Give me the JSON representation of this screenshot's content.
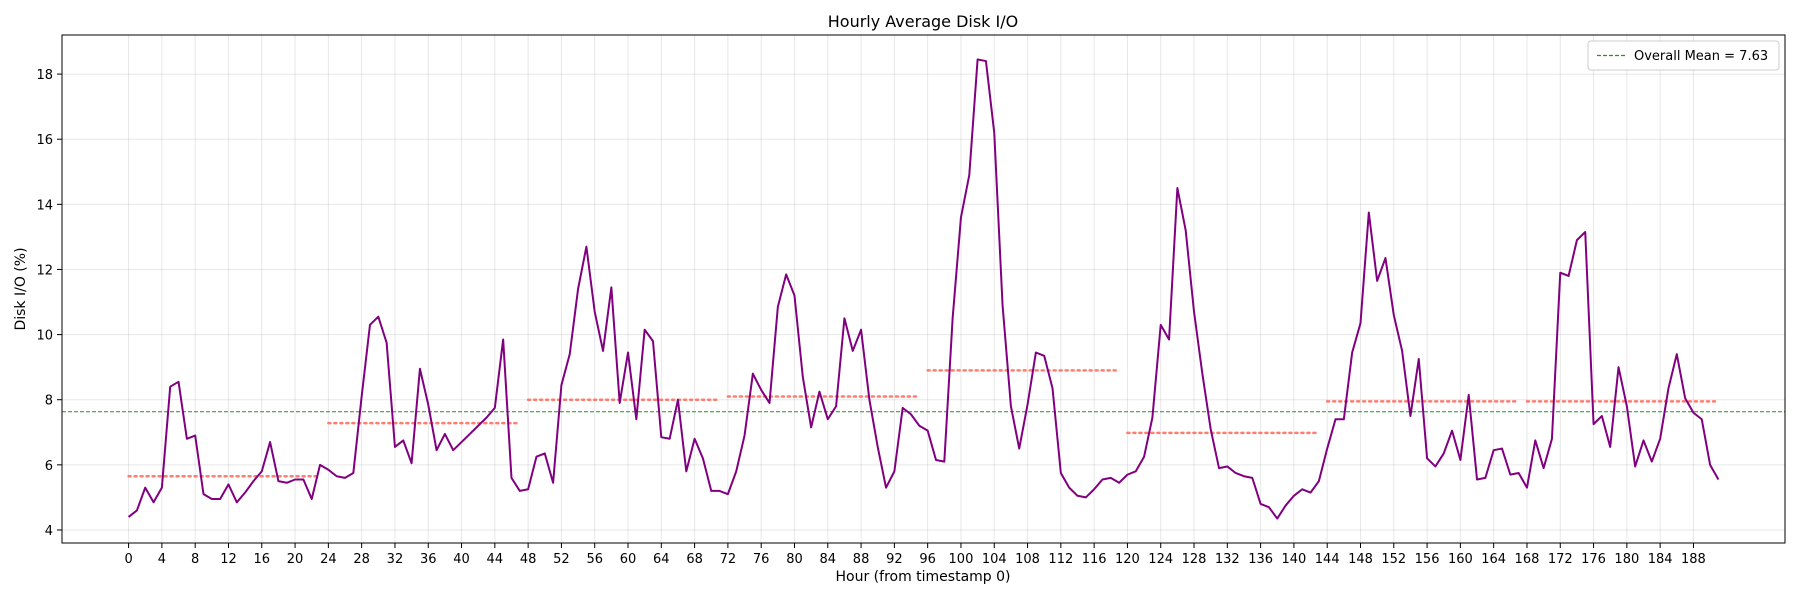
{
  "chart_data": {
    "type": "line",
    "title": "Hourly Average Disk I/O",
    "xlabel": "Hour (from timestamp 0)",
    "ylabel": "Disk I/O (%)",
    "xlim": [
      -8,
      199
    ],
    "ylim": [
      3.6,
      19.2
    ],
    "grid": true,
    "legend_position": "top-right",
    "x_ticks": [
      0,
      4,
      8,
      12,
      16,
      20,
      24,
      28,
      32,
      36,
      40,
      44,
      48,
      52,
      56,
      60,
      64,
      68,
      72,
      76,
      80,
      84,
      88,
      92,
      96,
      100,
      104,
      108,
      112,
      116,
      120,
      124,
      128,
      132,
      136,
      140,
      144,
      148,
      152,
      156,
      160,
      164,
      168,
      172,
      176,
      180,
      184,
      188
    ],
    "y_ticks": [
      4,
      6,
      8,
      10,
      12,
      14,
      16,
      18
    ],
    "series": [
      {
        "color": "#800080",
        "style": "solid",
        "x_start": 0,
        "x_step": 1,
        "values": [
          4.4,
          4.6,
          5.3,
          4.85,
          5.3,
          8.4,
          8.55,
          6.8,
          6.9,
          5.1,
          4.95,
          4.95,
          5.4,
          4.85,
          5.15,
          5.5,
          5.8,
          6.7,
          5.5,
          5.45,
          5.55,
          5.55,
          4.95,
          6.0,
          5.85,
          5.65,
          5.6,
          5.75,
          8.1,
          10.3,
          10.55,
          9.75,
          6.55,
          6.75,
          6.05,
          8.95,
          7.85,
          6.45,
          6.95,
          6.45,
          6.7,
          6.95,
          7.2,
          7.45,
          7.75,
          9.85,
          5.6,
          5.2,
          5.25,
          6.25,
          6.35,
          5.45,
          8.45,
          9.4,
          11.4,
          12.7,
          10.7,
          9.5,
          11.45,
          7.9,
          9.45,
          7.4,
          10.15,
          9.8,
          6.85,
          6.8,
          8.0,
          5.8,
          6.8,
          6.2,
          5.2,
          5.2,
          5.1,
          5.8,
          6.9,
          8.8,
          8.3,
          7.9,
          10.85,
          11.85,
          11.2,
          8.7,
          7.15,
          8.25,
          7.4,
          7.8,
          10.5,
          9.5,
          10.15,
          8.0,
          6.55,
          5.3,
          5.8,
          7.75,
          7.55,
          7.2,
          7.05,
          6.15,
          6.1,
          10.5,
          13.6,
          14.9,
          18.45,
          18.4,
          16.2,
          10.9,
          7.8,
          6.5,
          7.85,
          9.45,
          9.35,
          8.35,
          5.75,
          5.3,
          5.05,
          5.0,
          5.25,
          5.55,
          5.6,
          5.45,
          5.7,
          5.8,
          6.25,
          7.45,
          10.3,
          9.85,
          14.5,
          13.2,
          10.7,
          8.8,
          7.1,
          5.9,
          5.95,
          5.75,
          5.65,
          5.6,
          4.8,
          4.7,
          4.35,
          4.75,
          5.05,
          5.25,
          5.15,
          5.5,
          6.5,
          7.4,
          7.4,
          9.45,
          10.35,
          13.75,
          11.65,
          12.35,
          10.6,
          9.5,
          7.5,
          9.25,
          6.2,
          5.95,
          6.35,
          7.05,
          6.15,
          8.15,
          5.55,
          5.6,
          6.45,
          6.5,
          5.7,
          5.75,
          5.3,
          6.75,
          5.9,
          6.8,
          11.9,
          11.8,
          12.9,
          13.15,
          7.25,
          7.5,
          6.55,
          9.0,
          7.8,
          5.95,
          6.75,
          6.1,
          6.8,
          8.35,
          9.4,
          8.05,
          7.6,
          7.4,
          6.0,
          5.55
        ]
      }
    ],
    "daily_means": {
      "color": "#ff6f61",
      "style": "dotted",
      "segments": [
        {
          "x_start": 0,
          "x_end": 23,
          "value": 5.65
        },
        {
          "x_start": 24,
          "x_end": 47,
          "value": 7.28
        },
        {
          "x_start": 48,
          "x_end": 71,
          "value": 8.0
        },
        {
          "x_start": 72,
          "x_end": 95,
          "value": 8.1
        },
        {
          "x_start": 96,
          "x_end": 119,
          "value": 8.9
        },
        {
          "x_start": 120,
          "x_end": 143,
          "value": 6.98
        },
        {
          "x_start": 144,
          "x_end": 167,
          "value": 7.95
        },
        {
          "x_start": 168,
          "x_end": 191,
          "value": 7.95
        }
      ]
    },
    "overall_mean": {
      "value": 7.63,
      "color": "#2a8f2a",
      "style": "dashed",
      "legend_label": "Overall Mean = 7.63"
    }
  }
}
